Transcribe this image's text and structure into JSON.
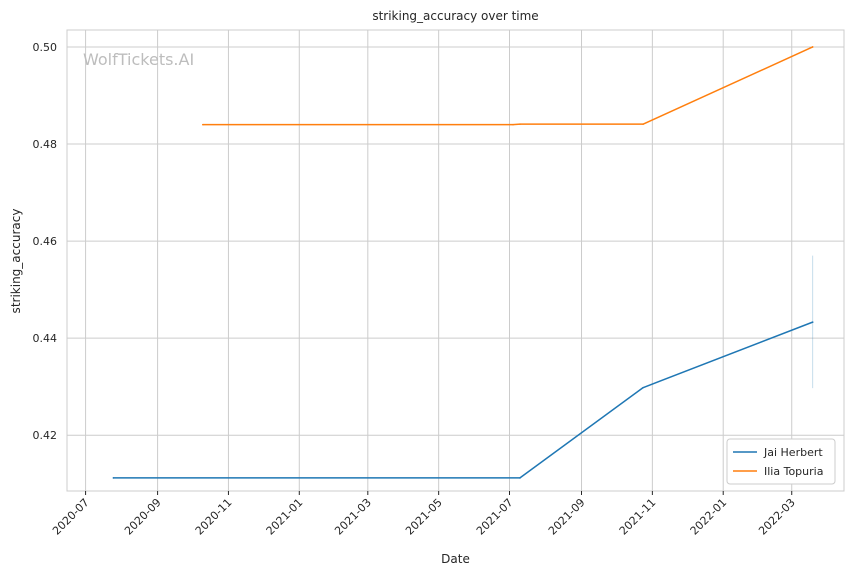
{
  "chart_data": {
    "type": "line",
    "title": "striking_accuracy over time",
    "xlabel": "Date",
    "ylabel": "striking_accuracy",
    "watermark": "WolfTickets.AI",
    "x_range": [
      "2020-06-15",
      "2022-04-15"
    ],
    "ylim": [
      0.4085,
      0.5035
    ],
    "x_ticks": [
      "2020-07",
      "2020-09",
      "2020-11",
      "2021-01",
      "2021-03",
      "2021-05",
      "2021-07",
      "2021-09",
      "2021-11",
      "2022-01",
      "2022-03"
    ],
    "x_tick_dates": [
      "2020-07-01",
      "2020-09-01",
      "2020-11-01",
      "2021-01-01",
      "2021-03-01",
      "2021-05-01",
      "2021-07-01",
      "2021-09-01",
      "2021-11-01",
      "2022-01-01",
      "2022-03-01"
    ],
    "y_ticks": [
      "0.42",
      "0.44",
      "0.46",
      "0.48",
      "0.50"
    ],
    "y_tick_values": [
      0.42,
      0.44,
      0.46,
      0.48,
      0.5
    ],
    "grid": true,
    "legend_position": "lower-right",
    "series": [
      {
        "name": "Jai Herbert",
        "color": "#1f77b4",
        "points": [
          {
            "x": "2020-07-25",
            "y": 0.4112
          },
          {
            "x": "2021-07-10",
            "y": 0.4112
          },
          {
            "x": "2021-10-24",
            "y": 0.4298
          },
          {
            "x": "2022-03-19",
            "y": 0.4433
          }
        ],
        "error_band": {
          "x": "2022-03-19",
          "low": 0.4297,
          "high": 0.457
        }
      },
      {
        "name": "Ilia Topuria",
        "color": "#ff7f0e",
        "points": [
          {
            "x": "2020-10-10",
            "y": 0.484
          },
          {
            "x": "2021-07-04",
            "y": 0.484
          },
          {
            "x": "2021-07-10",
            "y": 0.4841
          },
          {
            "x": "2021-10-24",
            "y": 0.4841
          },
          {
            "x": "2022-03-19",
            "y": 0.5
          }
        ]
      }
    ]
  }
}
